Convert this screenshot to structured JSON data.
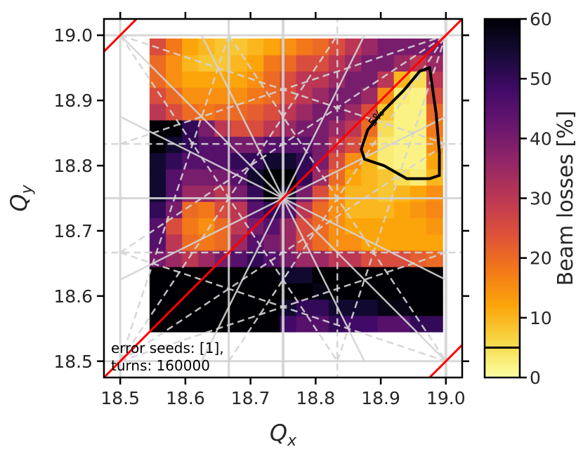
{
  "chart_data": {
    "type": "heatmap",
    "xlabel": {
      "main": "Q",
      "sub": "x"
    },
    "ylabel": {
      "main": "Q",
      "sub": "y"
    },
    "xlim": [
      18.475,
      19.025
    ],
    "ylim": [
      18.475,
      19.025
    ],
    "xticks": [
      18.5,
      18.6,
      18.7,
      18.8,
      18.9,
      {
        "value": 19.0,
        "label": "19.0"
      }
    ],
    "yticks": [
      18.5,
      18.6,
      18.7,
      18.8,
      18.9,
      {
        "value": 19.0,
        "label": "19.0"
      }
    ],
    "xbins": [
      18.545,
      18.57,
      18.595,
      18.62,
      18.645,
      18.67,
      18.695,
      18.72,
      18.745,
      18.77,
      18.795,
      18.82,
      18.845,
      18.87,
      18.895,
      18.92,
      18.945,
      18.97,
      18.995
    ],
    "ybins": [
      18.545,
      18.57,
      18.595,
      18.62,
      18.645,
      18.67,
      18.695,
      18.72,
      18.745,
      18.77,
      18.795,
      18.82,
      18.845,
      18.87,
      18.895,
      18.92,
      18.945,
      18.97,
      18.995
    ],
    "values": [
      [
        60,
        60,
        60,
        60,
        60,
        60,
        60,
        60,
        48,
        45,
        45,
        50,
        48,
        48,
        45,
        45,
        50,
        50
      ],
      [
        60,
        60,
        60,
        60,
        60,
        60,
        60,
        60,
        55,
        50,
        50,
        55,
        55,
        55,
        58,
        58,
        60,
        60
      ],
      [
        60,
        60,
        60,
        60,
        60,
        60,
        60,
        60,
        60,
        60,
        58,
        60,
        60,
        60,
        60,
        60,
        60,
        60
      ],
      [
        60,
        60,
        60,
        60,
        60,
        60,
        60,
        60,
        55,
        55,
        60,
        60,
        60,
        60,
        60,
        60,
        60,
        60
      ],
      [
        40,
        35,
        30,
        35,
        40,
        45,
        50,
        45,
        40,
        35,
        35,
        30,
        30,
        25,
        25,
        25,
        22,
        20
      ],
      [
        45,
        30,
        20,
        18,
        20,
        35,
        45,
        40,
        35,
        25,
        20,
        15,
        15,
        12,
        12,
        12,
        12,
        12
      ],
      [
        45,
        25,
        18,
        15,
        20,
        30,
        40,
        45,
        35,
        25,
        20,
        15,
        12,
        12,
        12,
        12,
        12,
        14
      ],
      [
        50,
        40,
        20,
        18,
        25,
        30,
        45,
        50,
        45,
        30,
        20,
        15,
        10,
        10,
        10,
        12,
        14,
        16
      ],
      [
        55,
        45,
        35,
        35,
        30,
        40,
        50,
        60,
        55,
        40,
        25,
        15,
        10,
        10,
        8,
        10,
        12,
        15
      ],
      [
        55,
        45,
        40,
        40,
        40,
        45,
        55,
        60,
        60,
        50,
        35,
        20,
        12,
        10,
        8,
        5,
        3,
        10
      ],
      [
        55,
        50,
        45,
        45,
        45,
        50,
        50,
        55,
        55,
        50,
        40,
        25,
        15,
        10,
        3,
        2,
        2,
        12
      ],
      [
        60,
        55,
        50,
        45,
        45,
        40,
        40,
        45,
        45,
        45,
        40,
        30,
        25,
        15,
        3,
        2,
        2,
        15
      ],
      [
        60,
        60,
        50,
        40,
        30,
        25,
        25,
        30,
        35,
        40,
        40,
        35,
        30,
        20,
        5,
        2,
        2,
        18
      ],
      [
        30,
        25,
        20,
        18,
        20,
        20,
        22,
        25,
        30,
        35,
        40,
        40,
        35,
        25,
        8,
        2,
        2,
        20
      ],
      [
        25,
        20,
        15,
        15,
        15,
        15,
        18,
        20,
        25,
        30,
        35,
        40,
        40,
        35,
        15,
        3,
        2,
        25
      ],
      [
        20,
        15,
        12,
        12,
        12,
        12,
        15,
        20,
        25,
        30,
        30,
        35,
        40,
        40,
        30,
        10,
        5,
        30
      ],
      [
        20,
        15,
        10,
        8,
        8,
        10,
        12,
        18,
        20,
        25,
        25,
        30,
        35,
        40,
        40,
        35,
        30,
        35
      ],
      [
        25,
        18,
        12,
        10,
        8,
        8,
        10,
        12,
        15,
        18,
        20,
        25,
        30,
        35,
        40,
        40,
        40,
        40
      ]
    ],
    "colormap": "inferno_r",
    "zlim": [
      0,
      60
    ],
    "zticks": [
      0,
      10,
      20,
      30,
      40,
      50,
      60
    ],
    "zlabel": "Beam losses [%]",
    "contour": {
      "level": 5,
      "label": "5%",
      "x": [
        18.975,
        18.985,
        18.99,
        18.99,
        18.975,
        18.94,
        18.905,
        18.875,
        18.87,
        18.88,
        18.905,
        18.935,
        18.96,
        18.975
      ],
      "y": [
        18.95,
        18.88,
        18.82,
        18.785,
        18.78,
        18.78,
        18.8,
        18.81,
        18.825,
        18.855,
        18.885,
        18.915,
        18.945,
        18.95
      ]
    },
    "annotation": [
      "error seeds: [1],",
      "turns: 160000"
    ],
    "resonance_lines": [
      {
        "x": [
          18.5,
          18.5
        ],
        "y": [
          18.4,
          19.1
        ],
        "color": "#d3d3d3",
        "style": "solid",
        "width": 3
      },
      {
        "x": [
          18.6667,
          18.6667
        ],
        "y": [
          18.4,
          19.1
        ],
        "color": "#d3d3d3",
        "style": "solid",
        "width": 3
      },
      {
        "x": [
          18.75,
          18.75
        ],
        "y": [
          18.4,
          19.1
        ],
        "color": "#d3d3d3",
        "style": "solid",
        "width": 4
      },
      {
        "x": [
          19.0,
          19.0
        ],
        "y": [
          18.4,
          19.1
        ],
        "color": "#d3d3d3",
        "style": "solid",
        "width": 4
      },
      {
        "x": [
          18.4,
          19.1
        ],
        "y": [
          18.75,
          18.75
        ],
        "color": "#d3d3d3",
        "style": "solid",
        "width": 3
      },
      {
        "x": [
          18.4,
          19.1
        ],
        "y": [
          19.0,
          19.0
        ],
        "color": "#d3d3d3",
        "style": "solid",
        "width": 3
      },
      {
        "x": [
          18.4,
          19.1
        ],
        "y": [
          18.5,
          18.5
        ],
        "color": "#d3d3d3",
        "style": "solid",
        "width": 3
      },
      {
        "x": [
          18.4,
          19.1
        ],
        "y": [
          18.6667,
          18.6667
        ],
        "color": "#d3d3d3",
        "style": "dashed",
        "width": 2.5
      },
      {
        "x": [
          18.4,
          19.1
        ],
        "y": [
          18.8333,
          18.8333
        ],
        "color": "#d3d3d3",
        "style": "dashed",
        "width": 2.5
      },
      {
        "x": [
          18.8333,
          18.8333
        ],
        "y": [
          18.4,
          19.1
        ],
        "color": "#d3d3d3",
        "style": "dashed",
        "width": 2.5
      },
      {
        "x": [
          18.5,
          19.0
        ],
        "y": [
          19.0,
          18.5
        ],
        "color": "#d3d3d3",
        "style": "solid",
        "width": 2.5
      },
      {
        "x": [
          18.625,
          18.875
        ],
        "y": [
          18.5,
          19.0
        ],
        "color": "#d3d3d3",
        "style": "solid",
        "width": 2.5
      },
      {
        "x": [
          18.625,
          18.875
        ],
        "y": [
          19.0,
          18.5
        ],
        "color": "#d3d3d3",
        "style": "solid",
        "width": 2.5
      },
      {
        "x": [
          18.5,
          19.0
        ],
        "y": [
          18.625,
          18.875
        ],
        "color": "#d3d3d3",
        "style": "solid",
        "width": 2.5
      },
      {
        "x": [
          18.5,
          19.0
        ],
        "y": [
          18.875,
          18.625
        ],
        "color": "#d3d3d3",
        "style": "solid",
        "width": 2.5
      },
      {
        "x": [
          18.5,
          19.0
        ],
        "y": [
          18.8333,
          19.0
        ],
        "color": "#d3d3d3",
        "style": "dashed",
        "width": 2.5
      },
      {
        "x": [
          18.5,
          19.0
        ],
        "y": [
          18.6667,
          19.0
        ],
        "color": "#d3d3d3",
        "style": "dashed",
        "width": 2.5
      },
      {
        "x": [
          18.6667,
          19.0
        ],
        "y": [
          18.5,
          19.0
        ],
        "color": "#d3d3d3",
        "style": "dashed",
        "width": 2.5
      },
      {
        "x": [
          18.8333,
          19.0
        ],
        "y": [
          18.5,
          19.0
        ],
        "color": "#d3d3d3",
        "style": "dashed",
        "width": 2.5
      },
      {
        "x": [
          18.5,
          19.0
        ],
        "y": [
          18.5,
          18.6667
        ],
        "color": "#d3d3d3",
        "style": "dashed",
        "width": 2.5
      },
      {
        "x": [
          18.5,
          19.0
        ],
        "y": [
          18.5,
          18.8333
        ],
        "color": "#d3d3d3",
        "style": "dashed",
        "width": 2.5
      },
      {
        "x": [
          18.5,
          18.6667
        ],
        "y": [
          18.5,
          19.0
        ],
        "color": "#d3d3d3",
        "style": "dashed",
        "width": 2.5
      },
      {
        "x": [
          18.5,
          18.8333
        ],
        "y": [
          18.5,
          19.0
        ],
        "color": "#d3d3d3",
        "style": "dashed",
        "width": 2.5
      },
      {
        "x": [
          18.5,
          18.8333
        ],
        "y": [
          19.0,
          18.5
        ],
        "color": "#d3d3d3",
        "style": "dashed",
        "width": 2.5
      },
      {
        "x": [
          18.6667,
          19.0
        ],
        "y": [
          19.0,
          18.5
        ],
        "color": "#d3d3d3",
        "style": "dashed",
        "width": 2.5
      },
      {
        "x": [
          18.5,
          19.0
        ],
        "y": [
          19.0,
          18.8333
        ],
        "color": "#d3d3d3",
        "style": "dashed",
        "width": 2.5
      },
      {
        "x": [
          18.5,
          19.0
        ],
        "y": [
          18.6667,
          18.5
        ],
        "color": "#d3d3d3",
        "style": "dashed",
        "width": 2.5
      },
      {
        "x": [
          18.4,
          19.1
        ],
        "y": [
          18.4,
          19.1
        ],
        "color": "#ff0000",
        "style": "solid",
        "width": 3
      },
      {
        "x": [
          18.4,
          18.6
        ],
        "y": [
          18.9,
          19.1
        ],
        "color": "#ff0000",
        "style": "solid",
        "width": 3
      },
      {
        "x": [
          18.9,
          19.1
        ],
        "y": [
          18.4,
          18.6
        ],
        "color": "#ff0000",
        "style": "solid",
        "width": 3
      }
    ]
  }
}
